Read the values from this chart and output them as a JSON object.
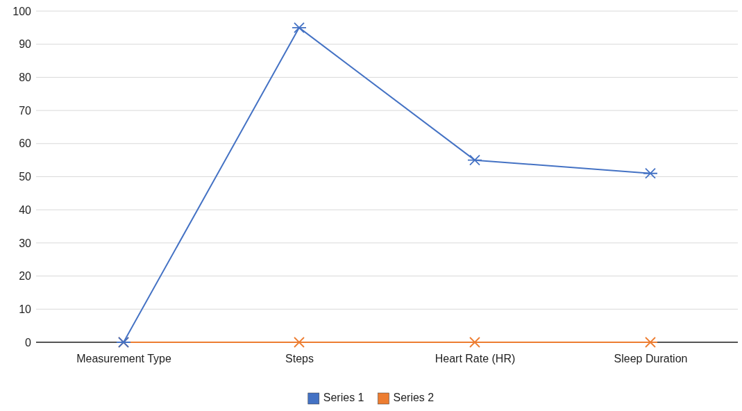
{
  "chart_data": {
    "type": "line",
    "categories": [
      "Measurement Type",
      "Steps",
      "Heart Rate (HR)",
      "Sleep Duration"
    ],
    "series": [
      {
        "name": "Series 1",
        "color": "#4472c4",
        "values": [
          0,
          95,
          55,
          51
        ]
      },
      {
        "name": "Series 2",
        "color": "#ed7d31",
        "values": [
          0,
          0,
          0,
          0
        ]
      }
    ],
    "ylim": [
      0,
      100
    ],
    "yticks": [
      0,
      10,
      20,
      30,
      40,
      50,
      60,
      70,
      80,
      90,
      100
    ],
    "grid": "y",
    "legend": "bottom",
    "marker": "cross",
    "line_style": "solid"
  }
}
